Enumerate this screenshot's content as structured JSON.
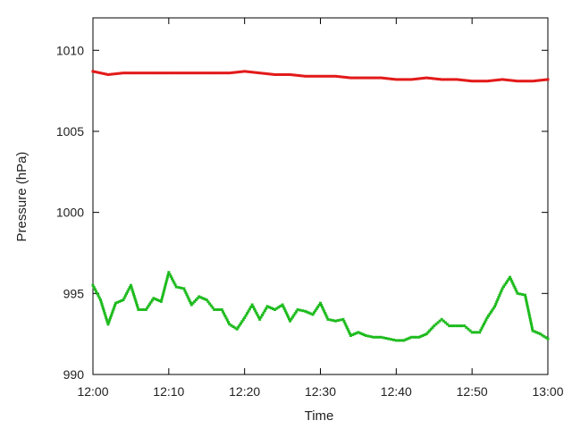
{
  "chart_data": {
    "type": "scatter",
    "title": "",
    "xlabel": "Time",
    "ylabel": "Pressure (hPa)",
    "xlim": [
      "12:00",
      "13:00"
    ],
    "ylim": [
      990,
      1012
    ],
    "x_ticks": [
      "12:00",
      "12:10",
      "12:20",
      "12:30",
      "12:40",
      "12:50",
      "13:00"
    ],
    "y_ticks": [
      990,
      995,
      1000,
      1005,
      1010
    ],
    "grid": false,
    "legend": "none",
    "series": [
      {
        "color": "#e31a1a",
        "x": [
          "12:00",
          "12:02",
          "12:04",
          "12:06",
          "12:08",
          "12:10",
          "12:12",
          "12:14",
          "12:16",
          "12:18",
          "12:20",
          "12:22",
          "12:24",
          "12:26",
          "12:28",
          "12:30",
          "12:32",
          "12:34",
          "12:36",
          "12:38",
          "12:40",
          "12:42",
          "12:44",
          "12:46",
          "12:48",
          "12:50",
          "12:52",
          "12:54",
          "12:56",
          "12:58",
          "13:00"
        ],
        "values": [
          1008.7,
          1008.5,
          1008.6,
          1008.6,
          1008.6,
          1008.6,
          1008.6,
          1008.6,
          1008.6,
          1008.6,
          1008.7,
          1008.6,
          1008.5,
          1008.5,
          1008.4,
          1008.4,
          1008.4,
          1008.3,
          1008.3,
          1008.3,
          1008.2,
          1008.2,
          1008.3,
          1008.2,
          1008.2,
          1008.1,
          1008.1,
          1008.2,
          1008.1,
          1008.1,
          1008.2
        ]
      },
      {
        "color": "#1dbb1d",
        "x": [
          "12:00",
          "12:01",
          "12:02",
          "12:03",
          "12:04",
          "12:05",
          "12:06",
          "12:07",
          "12:08",
          "12:09",
          "12:10",
          "12:11",
          "12:12",
          "12:13",
          "12:14",
          "12:15",
          "12:16",
          "12:17",
          "12:18",
          "12:19",
          "12:20",
          "12:21",
          "12:22",
          "12:23",
          "12:24",
          "12:25",
          "12:26",
          "12:27",
          "12:28",
          "12:29",
          "12:30",
          "12:31",
          "12:32",
          "12:33",
          "12:34",
          "12:35",
          "12:36",
          "12:37",
          "12:38",
          "12:39",
          "12:40",
          "12:41",
          "12:42",
          "12:43",
          "12:44",
          "12:45",
          "12:46",
          "12:47",
          "12:48",
          "12:49",
          "12:50",
          "12:51",
          "12:52",
          "12:53",
          "12:54",
          "12:55",
          "12:56",
          "12:57",
          "12:58",
          "12:59",
          "13:00"
        ],
        "values": [
          995.5,
          994.6,
          993.1,
          994.4,
          994.6,
          995.5,
          994.0,
          994.0,
          994.7,
          994.5,
          996.3,
          995.4,
          995.3,
          994.3,
          994.8,
          994.6,
          994.0,
          994.0,
          993.1,
          992.8,
          993.5,
          994.3,
          993.4,
          994.2,
          994.0,
          994.3,
          993.3,
          994.0,
          993.9,
          993.7,
          994.4,
          993.4,
          993.3,
          993.4,
          992.4,
          992.6,
          992.4,
          992.3,
          992.3,
          992.2,
          992.1,
          992.1,
          992.3,
          992.3,
          992.5,
          993.0,
          993.4,
          993.0,
          993.0,
          993.0,
          992.6,
          992.6,
          993.5,
          994.2,
          995.3,
          996.0,
          995.0,
          994.9,
          992.7,
          992.5,
          992.2
        ]
      }
    ]
  }
}
